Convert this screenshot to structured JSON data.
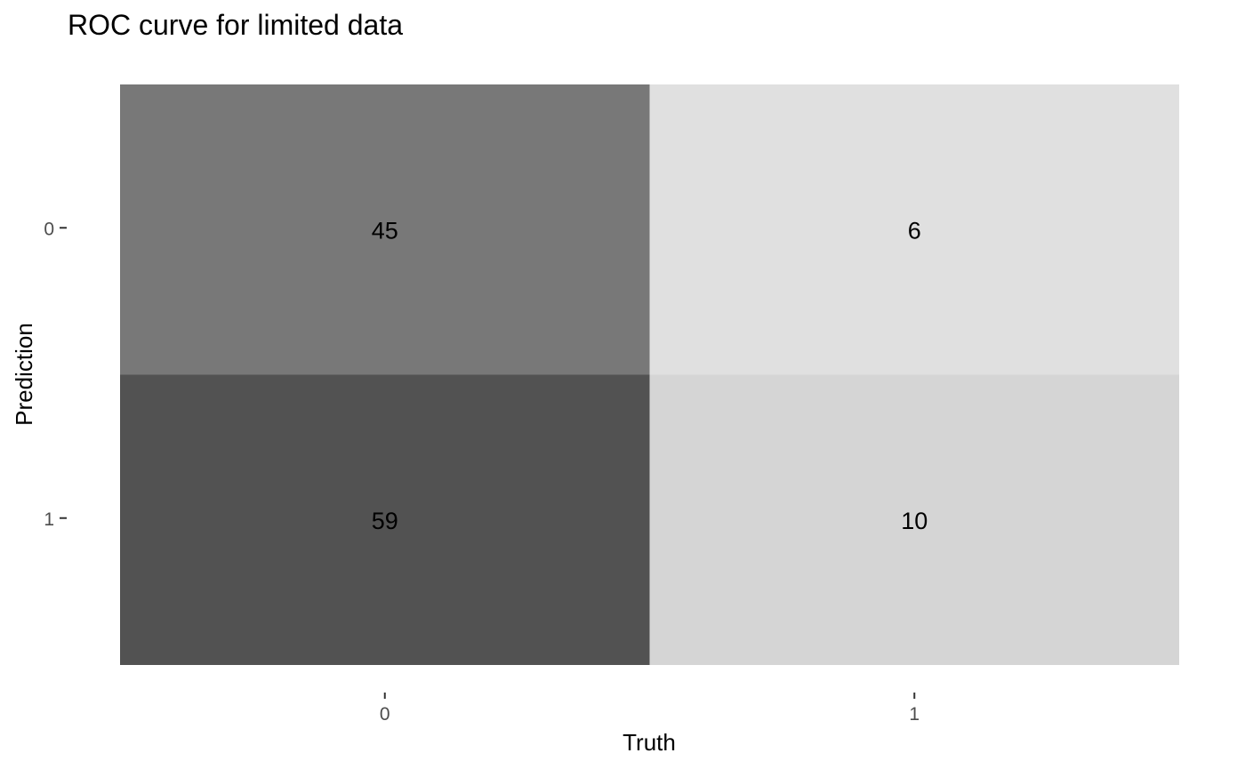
{
  "chart_data": {
    "type": "heatmap",
    "title": "ROC curve for limited data",
    "xlabel": "Truth",
    "ylabel": "Prediction",
    "x_categories": [
      "0",
      "1"
    ],
    "y_categories": [
      "0",
      "1"
    ],
    "cells": [
      {
        "truth": "0",
        "prediction": "0",
        "value": 45
      },
      {
        "truth": "1",
        "prediction": "0",
        "value": 6
      },
      {
        "truth": "0",
        "prediction": "1",
        "value": 59
      },
      {
        "truth": "1",
        "prediction": "1",
        "value": 10
      }
    ],
    "color_low": "#e0e0e0",
    "color_high": "#525252",
    "grid": false,
    "legend": "none"
  }
}
